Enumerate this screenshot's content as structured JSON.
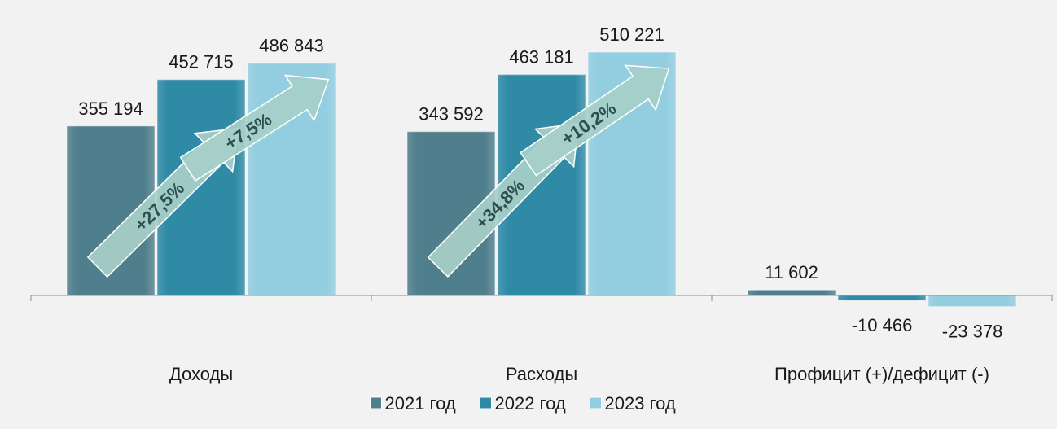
{
  "chart_data": {
    "type": "bar",
    "categories": [
      "Доходы",
      "Расходы",
      "Профицит (+)/дефицит (-)"
    ],
    "series": [
      {
        "name": "2021 год",
        "values": [
          355194,
          343592,
          11602
        ],
        "color": "#4f7e8c"
      },
      {
        "name": "2022 год",
        "values": [
          452715,
          463181,
          -10466
        ],
        "color": "#2f8aa6"
      },
      {
        "name": "2023 год",
        "values": [
          486843,
          510221,
          -23378
        ],
        "color": "#92cde0"
      }
    ],
    "value_labels": [
      [
        "355 194",
        "343 592",
        "11 602"
      ],
      [
        "452 715",
        "463 181",
        "-10 466"
      ],
      [
        "486 843",
        "510 221",
        "-23 378"
      ]
    ],
    "annotations": [
      {
        "text": "+27,5%",
        "group": "Доходы",
        "from": "2021 год",
        "to": "2022 год"
      },
      {
        "text": "+7,5%",
        "group": "Доходы",
        "from": "2022 год",
        "to": "2023 год"
      },
      {
        "text": "+34,8%",
        "group": "Расходы",
        "from": "2021 год",
        "to": "2022 год"
      },
      {
        "text": "+10,2%",
        "group": "Расходы",
        "from": "2022 год",
        "to": "2023 год"
      }
    ],
    "ylim": [
      -30000,
      520000
    ],
    "grid": false,
    "legend_position": "bottom"
  }
}
